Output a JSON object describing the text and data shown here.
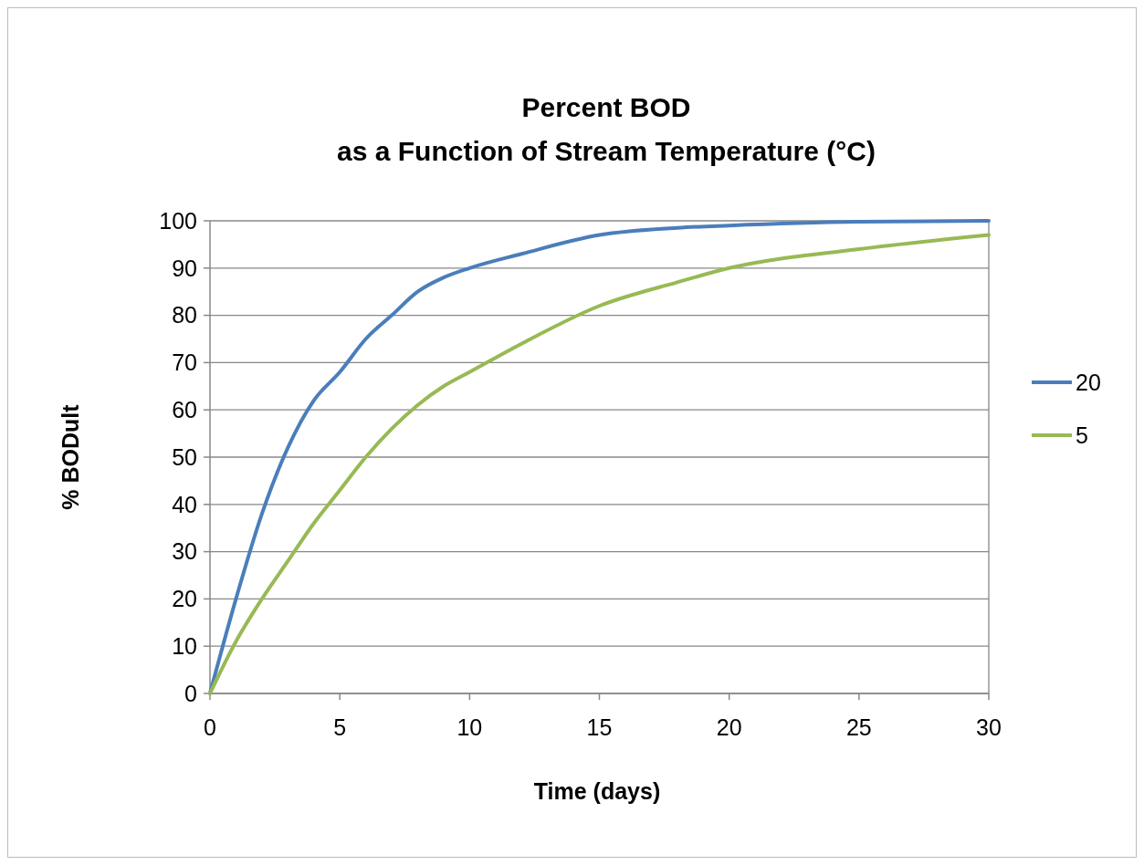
{
  "chart_data": {
    "type": "line",
    "title": "Percent BOD\nas a Function of Stream Temperature (°C)",
    "xlabel": "Time (days)",
    "ylabel": "% BODult",
    "xlim": [
      0,
      30
    ],
    "xticks": [
      0,
      5,
      10,
      15,
      20,
      25,
      30
    ],
    "ylim": [
      0,
      100
    ],
    "yticks": [
      0,
      10,
      20,
      30,
      40,
      50,
      60,
      70,
      80,
      90,
      100
    ],
    "grid": "y",
    "legend": "right",
    "marker": "none",
    "line_style": "solid",
    "series": [
      {
        "name": "20",
        "color": "#4a7ebb",
        "x": [
          0,
          1,
          2,
          3,
          4,
          5,
          6,
          7,
          8,
          9,
          10,
          12,
          15,
          18,
          20,
          25,
          30
        ],
        "values": [
          0,
          20,
          38,
          52,
          62,
          68,
          75,
          80,
          85,
          88,
          90,
          93,
          97,
          98.5,
          99,
          99.8,
          100
        ]
      },
      {
        "name": "5",
        "color": "#98b954",
        "x": [
          0,
          1,
          2,
          3,
          4,
          5,
          6,
          7,
          8,
          9,
          10,
          12,
          15,
          18,
          20,
          25,
          30
        ],
        "values": [
          0,
          11,
          20,
          28,
          36,
          43,
          50,
          56,
          61,
          65,
          68,
          74,
          82,
          87,
          90,
          94,
          97
        ]
      }
    ]
  }
}
